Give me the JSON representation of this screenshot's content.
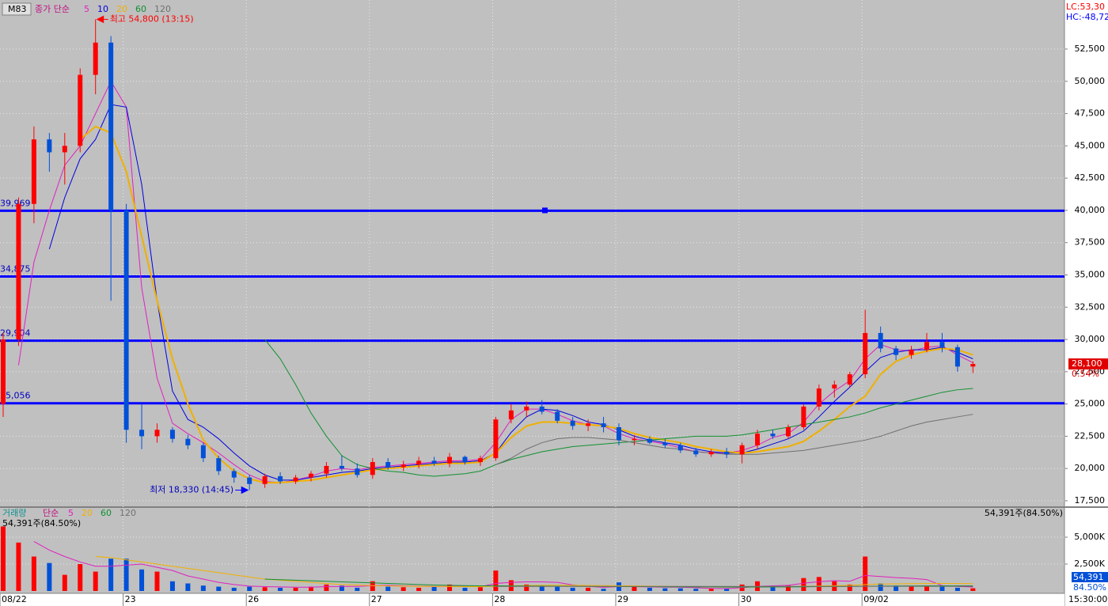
{
  "chart_data": {
    "type": "candlestick",
    "legend": {
      "box": "M83",
      "label": "종가 단순"
    },
    "volume_legend": {
      "label": "거래량",
      "method": "단순"
    },
    "corner": {
      "lc": "LC:53,30",
      "hc": "HC:-48,72",
      "time": "15:30:00"
    },
    "annotations": {
      "high": "최고 54,800 (13:15)",
      "low": "최저 18,330 (14:45)"
    },
    "high_index": 6,
    "low_index": 16,
    "current_price": {
      "value": 28100,
      "label": "28,100",
      "change": "0.54%"
    },
    "current_volume": {
      "label": "54,391",
      "ratio": "84.50%",
      "text": "54,391주(84.50%)"
    },
    "grid": true,
    "categories": [
      "08/22",
      null,
      null,
      null,
      null,
      null,
      null,
      null,
      "23",
      null,
      null,
      null,
      null,
      null,
      null,
      null,
      "26",
      null,
      null,
      null,
      null,
      null,
      null,
      null,
      "27",
      null,
      null,
      null,
      null,
      null,
      null,
      null,
      "28",
      null,
      null,
      null,
      null,
      null,
      null,
      null,
      "29",
      null,
      null,
      null,
      null,
      null,
      null,
      null,
      "30",
      null,
      null,
      null,
      null,
      null,
      null,
      null,
      "09/02",
      null,
      null,
      null,
      null,
      null,
      null,
      null
    ],
    "open": [
      25000,
      30000,
      40500,
      45500,
      44500,
      45000,
      50500,
      53000,
      40000,
      23000,
      22500,
      23000,
      22300,
      21800,
      20800,
      19800,
      19300,
      18800,
      19400,
      19000,
      19300,
      19600,
      20200,
      20000,
      19500,
      20500,
      20100,
      20300,
      20600,
      20400,
      20900,
      20500,
      20800,
      23800,
      24500,
      24800,
      24400,
      23700,
      23300,
      23500,
      23200,
      22200,
      22300,
      22000,
      21800,
      21400,
      21100,
      21300,
      21100,
      21800,
      22700,
      22500,
      23200,
      24800,
      26200,
      26500,
      27300,
      30500,
      29300,
      28800,
      29200,
      29800,
      29400,
      27900
    ],
    "high": [
      30500,
      41000,
      46500,
      46000,
      46000,
      51000,
      54800,
      53500,
      40500,
      25000,
      23500,
      23200,
      22600,
      22000,
      21000,
      20000,
      19500,
      19600,
      19700,
      19500,
      19800,
      20500,
      21000,
      20400,
      20800,
      20800,
      20600,
      20900,
      20900,
      21200,
      21000,
      21000,
      24000,
      25000,
      25200,
      25300,
      24600,
      24000,
      23800,
      24000,
      23500,
      22600,
      22500,
      22300,
      22000,
      21600,
      21500,
      21600,
      22000,
      23000,
      23000,
      23400,
      25000,
      26500,
      26800,
      27500,
      32300,
      31000,
      29500,
      29500,
      30500,
      30500,
      29600,
      28300
    ],
    "low": [
      24000,
      29500,
      39000,
      43000,
      42000,
      44500,
      49000,
      33000,
      22000,
      21500,
      22000,
      22000,
      21500,
      20500,
      19500,
      18900,
      18330,
      18500,
      18800,
      18800,
      19000,
      19300,
      19800,
      19300,
      19200,
      19900,
      19800,
      20000,
      20200,
      20100,
      20300,
      20200,
      20600,
      23500,
      24000,
      24200,
      23500,
      23000,
      22900,
      22800,
      21800,
      21800,
      21900,
      21600,
      21200,
      20900,
      20900,
      20800,
      20400,
      21500,
      22300,
      22300,
      23000,
      24500,
      25500,
      26300,
      27000,
      29000,
      28400,
      28500,
      29000,
      29000,
      27500,
      27400
    ],
    "close": [
      30000,
      40500,
      45500,
      44500,
      45000,
      50500,
      53000,
      40000,
      23000,
      22500,
      23000,
      22300,
      21800,
      20800,
      19800,
      19300,
      18800,
      19400,
      19000,
      19300,
      19600,
      20200,
      20000,
      19500,
      20500,
      20100,
      20300,
      20600,
      20400,
      20900,
      20500,
      20800,
      23800,
      24500,
      24800,
      24400,
      23700,
      23300,
      23500,
      23200,
      22200,
      22300,
      22000,
      21800,
      21400,
      21100,
      21300,
      21100,
      21800,
      22700,
      22500,
      23200,
      24800,
      26200,
      26500,
      27300,
      30500,
      29300,
      28800,
      29200,
      29800,
      29400,
      27900,
      28100
    ],
    "up_color": "#ff0000",
    "down_color": "#0050d8",
    "series": [
      {
        "name": "5",
        "color": "#e020c0",
        "values": [
          null,
          28000,
          36000,
          40000,
          43500,
          45000,
          47500,
          50000,
          48000,
          34000,
          27000,
          23500,
          22700,
          22000,
          21200,
          20300,
          19500,
          19000,
          18900,
          19100,
          19400,
          19800,
          20000,
          19900,
          20100,
          20200,
          20300,
          20400,
          20500,
          20600,
          20600,
          20700,
          22000,
          23800,
          24600,
          24600,
          24200,
          23700,
          23400,
          23300,
          22700,
          22300,
          22100,
          21900,
          21600,
          21300,
          21200,
          21200,
          21400,
          21800,
          22400,
          22700,
          23600,
          25000,
          26000,
          26800,
          28500,
          29600,
          29200,
          29100,
          29400,
          29500,
          28800,
          28200
        ]
      },
      {
        "name": "10",
        "color": "#0000e0",
        "values": [
          null,
          null,
          null,
          37000,
          41000,
          44000,
          45500,
          48200,
          48000,
          42000,
          33000,
          26000,
          23800,
          23200,
          22300,
          21200,
          20200,
          19500,
          19100,
          19100,
          19300,
          19500,
          19700,
          19800,
          20000,
          20100,
          20200,
          20300,
          20400,
          20500,
          20500,
          20600,
          21200,
          22800,
          24000,
          24600,
          24500,
          24100,
          23600,
          23400,
          23000,
          22500,
          22200,
          22000,
          21800,
          21500,
          21300,
          21200,
          21200,
          21500,
          21900,
          22300,
          22900,
          24000,
          25200,
          26300,
          27500,
          28600,
          29000,
          29200,
          29200,
          29400,
          29000,
          28500
        ]
      },
      {
        "name": "20",
        "color": "#f0b000",
        "values": [
          null,
          null,
          null,
          null,
          null,
          45500,
          46500,
          46000,
          43000,
          38000,
          33000,
          28500,
          25000,
          22200,
          20800,
          19800,
          19200,
          18900,
          18900,
          19000,
          19100,
          19300,
          19500,
          19700,
          19900,
          20000,
          20100,
          20200,
          20300,
          20400,
          20400,
          20500,
          21200,
          22400,
          23300,
          23600,
          23600,
          23500,
          23400,
          23300,
          23100,
          22700,
          22400,
          22200,
          22000,
          21700,
          21500,
          21300,
          21200,
          21300,
          21500,
          21700,
          22100,
          22900,
          23800,
          24800,
          25600,
          27300,
          28300,
          28800,
          29100,
          29300,
          29200,
          28800
        ]
      },
      {
        "name": "60",
        "color": "#109030",
        "values": [
          null,
          null,
          null,
          null,
          null,
          null,
          null,
          null,
          null,
          null,
          null,
          null,
          null,
          null,
          null,
          null,
          null,
          30000,
          28500,
          26500,
          24300,
          22500,
          21000,
          20300,
          20000,
          19800,
          19700,
          19500,
          19400,
          19500,
          19600,
          19800,
          20300,
          20700,
          21000,
          21300,
          21500,
          21700,
          21800,
          21900,
          22000,
          22100,
          22200,
          22300,
          22400,
          22500,
          22500,
          22500,
          22600,
          22800,
          23000,
          23200,
          23400,
          23600,
          23800,
          24000,
          24300,
          24700,
          25000,
          25300,
          25600,
          25900,
          26100,
          26200
        ]
      },
      {
        "name": "120",
        "color": "#707070",
        "values": [
          null,
          null,
          null,
          null,
          null,
          null,
          null,
          null,
          null,
          null,
          null,
          null,
          null,
          null,
          null,
          null,
          null,
          null,
          null,
          null,
          null,
          null,
          null,
          null,
          null,
          null,
          null,
          null,
          null,
          null,
          null,
          null,
          20300,
          20800,
          21500,
          22000,
          22300,
          22400,
          22400,
          22300,
          22200,
          22000,
          21800,
          21600,
          21500,
          21300,
          21200,
          21100,
          21100,
          21100,
          21200,
          21300,
          21400,
          21600,
          21800,
          22000,
          22200,
          22500,
          22900,
          23300,
          23600,
          23800,
          24000,
          24200
        ]
      }
    ],
    "levels": [
      {
        "value": 39969,
        "label": "39,969"
      },
      {
        "value": 34875,
        "label": "34,875"
      },
      {
        "value": 29904,
        "label": "29,904"
      },
      {
        "value": 25056,
        "label": "25,056"
      }
    ],
    "level_color": "#0000ff",
    "ylim": [
      17070,
      56300
    ],
    "yticks": [
      {
        "value": 52500,
        "label": "52,500"
      },
      {
        "value": 50000,
        "label": "50,000"
      },
      {
        "value": 47500,
        "label": "47,500"
      },
      {
        "value": 45000,
        "label": "45,000"
      },
      {
        "value": 42500,
        "label": "42,500"
      },
      {
        "value": 40000,
        "label": "40,000"
      },
      {
        "value": 37500,
        "label": "37,500"
      },
      {
        "value": 35000,
        "label": "35,000"
      },
      {
        "value": 32500,
        "label": "32,500"
      },
      {
        "value": 30000,
        "label": "30,000"
      },
      {
        "value": 27500,
        "label": "27,500"
      },
      {
        "value": 25000,
        "label": "25,000"
      },
      {
        "value": 22500,
        "label": "22,500"
      },
      {
        "value": 20000,
        "label": "20,000"
      },
      {
        "value": 17500,
        "label": "17,500"
      }
    ],
    "volume": {
      "values": [
        6000,
        4500,
        3200,
        2600,
        1500,
        2500,
        1800,
        3000,
        3000,
        2000,
        1800,
        900,
        700,
        500,
        400,
        300,
        400,
        350,
        300,
        300,
        400,
        600,
        500,
        300,
        900,
        400,
        350,
        300,
        400,
        600,
        300,
        350,
        1900,
        1000,
        600,
        500,
        400,
        300,
        300,
        200,
        800,
        400,
        300,
        250,
        250,
        200,
        200,
        250,
        600,
        900,
        400,
        500,
        1200,
        1300,
        900,
        600,
        3200,
        700,
        500,
        400,
        500,
        400,
        300,
        250
      ],
      "series": [
        {
          "name": "5",
          "color": "#e020c0",
          "values": [
            null,
            null,
            4600,
            3800,
            3200,
            2700,
            2300,
            2300,
            2400,
            2500,
            2200,
            1900,
            1400,
            1100,
            800,
            600,
            450,
            400,
            380,
            350,
            350,
            400,
            420,
            420,
            500,
            520,
            480,
            450,
            400,
            420,
            420,
            400,
            700,
            800,
            850,
            850,
            800,
            560,
            420,
            340,
            400,
            400,
            380,
            360,
            350,
            300,
            240,
            220,
            300,
            420,
            480,
            520,
            720,
            860,
            960,
            900,
            1440,
            1340,
            1240,
            1180,
            1060,
            500,
            420,
            370
          ]
        },
        {
          "name": "20",
          "color": "#f0b000",
          "values": [
            null,
            null,
            null,
            null,
            null,
            null,
            3200,
            3100,
            2900,
            2700,
            2500,
            2300,
            2100,
            1900,
            1700,
            1500,
            1300,
            1100,
            1000,
            900,
            800,
            700,
            600,
            550,
            500,
            470,
            450,
            430,
            420,
            410,
            400,
            400,
            450,
            480,
            500,
            520,
            530,
            520,
            510,
            500,
            490,
            470,
            450,
            430,
            410,
            390,
            370,
            360,
            360,
            370,
            380,
            400,
            430,
            460,
            490,
            520,
            600,
            640,
            660,
            680,
            690,
            700,
            690,
            680
          ]
        },
        {
          "name": "60",
          "color": "#109030",
          "values": [
            null,
            null,
            null,
            null,
            null,
            null,
            null,
            null,
            null,
            null,
            null,
            null,
            null,
            null,
            null,
            null,
            null,
            1100,
            1050,
            1000,
            950,
            900,
            850,
            800,
            750,
            700,
            650,
            600,
            550,
            520,
            500,
            480,
            480,
            470,
            460,
            450,
            440,
            430,
            420,
            410,
            400,
            400,
            400,
            390,
            390,
            380,
            380,
            370,
            370,
            370,
            380,
            380,
            390,
            400,
            410,
            420,
            440,
            450,
            460,
            470,
            480,
            480,
            480,
            480
          ]
        },
        {
          "name": "120",
          "color": "#707070",
          "values": [
            null,
            null,
            null,
            null,
            null,
            null,
            null,
            null,
            null,
            null,
            null,
            null,
            null,
            null,
            null,
            null,
            null,
            null,
            null,
            null,
            null,
            null,
            null,
            null,
            null,
            null,
            null,
            null,
            null,
            null,
            null,
            null,
            420,
            420,
            420,
            420,
            420,
            420,
            420,
            420,
            420,
            420,
            420,
            420,
            420,
            420,
            420,
            420,
            420,
            420,
            420,
            420,
            420,
            420,
            420,
            420,
            430,
            430,
            430,
            430,
            430,
            430,
            430,
            430
          ]
        }
      ],
      "ylim": [
        0,
        7650
      ],
      "yticks": [
        {
          "value": 5000,
          "label": "5,000K"
        },
        {
          "value": 2500,
          "label": "2,500K"
        }
      ]
    }
  }
}
